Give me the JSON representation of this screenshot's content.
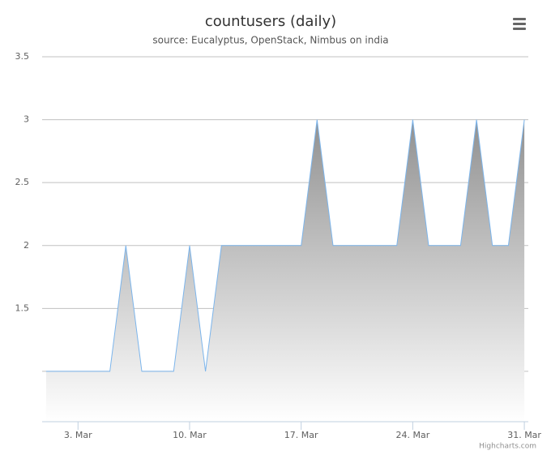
{
  "chart_data": {
    "type": "area",
    "title": "countusers (daily)",
    "subtitle": "source: Eucalyptus, OpenStack, Nimbus on india",
    "credits": "Highcharts.com",
    "x": [
      1,
      2,
      3,
      4,
      5,
      6,
      7,
      8,
      9,
      10,
      11,
      12,
      13,
      14,
      15,
      16,
      17,
      18,
      19,
      20,
      21,
      22,
      23,
      24,
      25,
      26,
      27,
      28,
      29,
      30,
      31
    ],
    "values": [
      1,
      1,
      1,
      1,
      1,
      2,
      1,
      1,
      1,
      2,
      1,
      2,
      2,
      2,
      2,
      2,
      2,
      3,
      2,
      2,
      2,
      2,
      2,
      3,
      2,
      2,
      2,
      3,
      2,
      2,
      3
    ],
    "color": "#7cb5ec",
    "xlim": [
      0.75,
      31.25
    ],
    "xticks": [
      {
        "value": 3,
        "label": "3. Mar"
      },
      {
        "value": 10,
        "label": "10. Mar"
      },
      {
        "value": 17,
        "label": "17. Mar"
      },
      {
        "value": 24,
        "label": "24. Mar"
      },
      {
        "value": 31,
        "label": "31. Mar"
      }
    ],
    "ylim": [
      0.6,
      3.5
    ],
    "yticks": [
      {
        "value": 1,
        "label": null
      },
      1.5,
      2,
      2.5,
      3,
      3.5
    ],
    "grid": true
  }
}
